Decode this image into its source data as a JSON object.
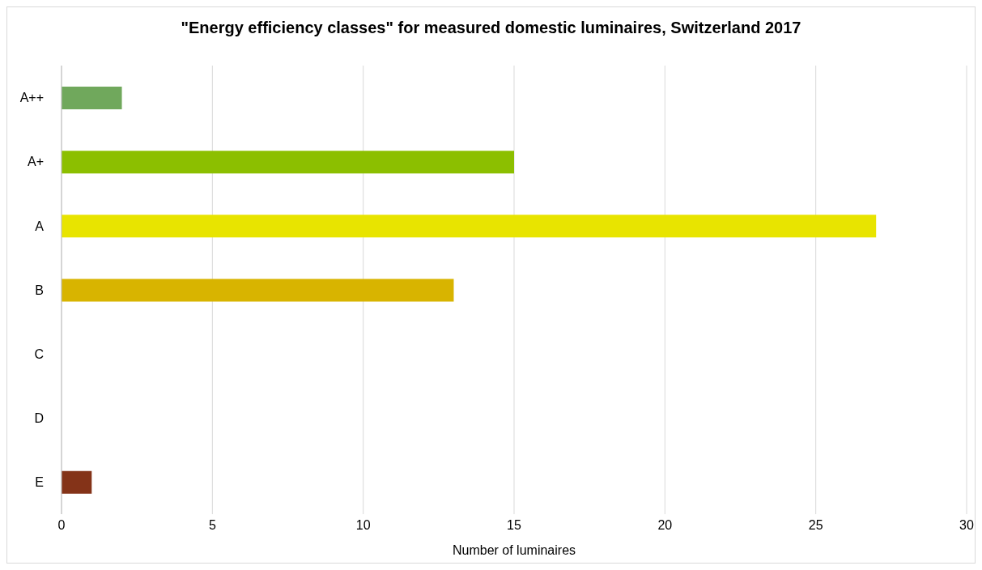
{
  "chart_data": {
    "type": "bar",
    "orientation": "horizontal",
    "title": "\"Energy efficiency classes\" for measured domestic luminaires, Switzerland 2017",
    "xlabel": "Number of luminaires",
    "categories": [
      "A++",
      "A+",
      "A",
      "B",
      "C",
      "D",
      "E"
    ],
    "values": [
      2,
      15,
      27,
      13,
      0,
      0,
      1
    ],
    "colors": [
      "#70a85c",
      "#8cbf00",
      "#e8e400",
      "#d8b400",
      "#d8b400",
      "#d8b400",
      "#843318"
    ],
    "xlim": [
      0,
      30
    ],
    "xticks": [
      0,
      5,
      10,
      15,
      20,
      25,
      30
    ],
    "grid": "x"
  }
}
